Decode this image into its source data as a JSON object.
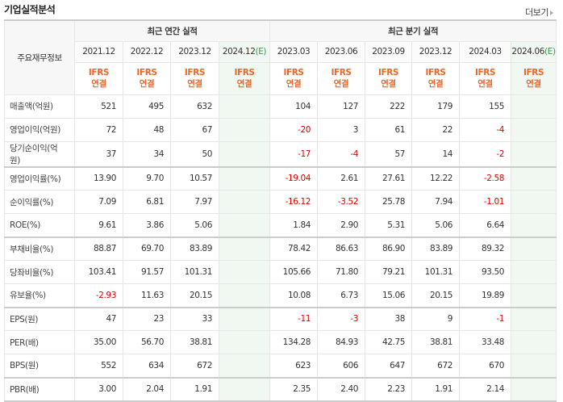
{
  "title": "기업실적분석",
  "more_label": "더보기",
  "header": {
    "row_label": "주요재무정보",
    "annual_group": "최근 연간 실적",
    "quarter_group": "최근 분기 실적",
    "annual_periods": [
      {
        "date": "2021.12",
        "e": ""
      },
      {
        "date": "2022.12",
        "e": ""
      },
      {
        "date": "2023.12",
        "e": ""
      },
      {
        "date": "2024.12",
        "e": "(E)"
      }
    ],
    "quarter_periods": [
      {
        "date": "2023.03",
        "e": ""
      },
      {
        "date": "2023.06",
        "e": ""
      },
      {
        "date": "2023.09",
        "e": ""
      },
      {
        "date": "2023.12",
        "e": ""
      },
      {
        "date": "2024.03",
        "e": ""
      },
      {
        "date": "2024.06",
        "e": "(E)"
      }
    ],
    "ifrs": "IFRS",
    "consolidated": "연결"
  },
  "rows": [
    {
      "label": "매출액(억원)",
      "values": [
        "521",
        "495",
        "632",
        "",
        "104",
        "127",
        "222",
        "179",
        "155",
        ""
      ]
    },
    {
      "label": "영업이익(억원)",
      "values": [
        "72",
        "48",
        "67",
        "",
        "-20",
        "3",
        "61",
        "22",
        "-4",
        ""
      ]
    },
    {
      "label": "당기순이익(억원)",
      "values": [
        "37",
        "34",
        "50",
        "",
        "-17",
        "-4",
        "57",
        "14",
        "-2",
        ""
      ]
    },
    {
      "label": "영업이익률(%)",
      "values": [
        "13.90",
        "9.70",
        "10.57",
        "",
        "-19.04",
        "2.61",
        "27.61",
        "12.22",
        "-2.58",
        ""
      ]
    },
    {
      "label": "순이익률(%)",
      "values": [
        "7.09",
        "6.81",
        "7.97",
        "",
        "-16.12",
        "-3.52",
        "25.78",
        "7.94",
        "-1.01",
        ""
      ]
    },
    {
      "label": "ROE(%)",
      "values": [
        "9.61",
        "3.86",
        "5.06",
        "",
        "1.84",
        "2.90",
        "5.31",
        "5.06",
        "6.64",
        ""
      ]
    },
    {
      "label": "부채비율(%)",
      "values": [
        "88.87",
        "69.70",
        "83.89",
        "",
        "78.42",
        "86.63",
        "86.90",
        "83.89",
        "89.32",
        ""
      ]
    },
    {
      "label": "당좌비율(%)",
      "values": [
        "103.41",
        "91.57",
        "101.31",
        "",
        "105.66",
        "71.80",
        "79.21",
        "101.31",
        "93.50",
        ""
      ]
    },
    {
      "label": "유보율(%)",
      "values": [
        "-2.93",
        "11.63",
        "20.15",
        "",
        "10.08",
        "6.73",
        "15.06",
        "20.15",
        "19.89",
        ""
      ]
    },
    {
      "label": "EPS(원)",
      "values": [
        "47",
        "23",
        "33",
        "",
        "-11",
        "-3",
        "38",
        "9",
        "-1",
        ""
      ]
    },
    {
      "label": "PER(배)",
      "values": [
        "35.00",
        "56.70",
        "38.81",
        "",
        "134.28",
        "84.93",
        "42.75",
        "38.81",
        "33.48",
        ""
      ]
    },
    {
      "label": "BPS(원)",
      "values": [
        "552",
        "634",
        "672",
        "",
        "623",
        "606",
        "647",
        "672",
        "670",
        ""
      ]
    },
    {
      "label": "PBR(배)",
      "values": [
        "3.00",
        "2.04",
        "1.91",
        "",
        "2.35",
        "2.40",
        "2.23",
        "1.91",
        "2.14",
        ""
      ]
    }
  ],
  "colors": {
    "ifrs": "#e8682a",
    "negative": "#e00000",
    "estimate_bg": "#f1f7f1"
  }
}
